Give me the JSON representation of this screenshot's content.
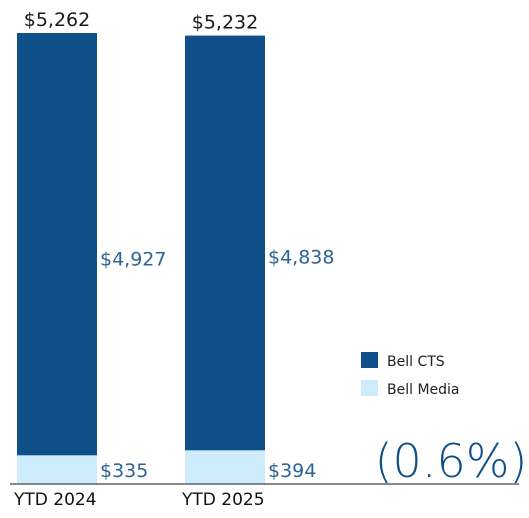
{
  "chart_data": {
    "type": "bar",
    "stacked": true,
    "categories": [
      "YTD 2024",
      "YTD 2025"
    ],
    "totals": [
      5262,
      5232
    ],
    "total_labels": [
      "$5,262",
      "$5,232"
    ],
    "series": [
      {
        "name": "Bell CTS",
        "values": [
          4927,
          4838
        ],
        "labels": [
          "$4,927",
          "$4,838"
        ],
        "color": "#10508A"
      },
      {
        "name": "Bell Media",
        "values": [
          335,
          394
        ],
        "labels": [
          "$335",
          "$394"
        ],
        "color": "#CDEBFB"
      }
    ],
    "change_label": "(0.6%)",
    "label_color": "#2E6493",
    "axis_color": "#444444",
    "legend_position": "right",
    "grid": false
  }
}
